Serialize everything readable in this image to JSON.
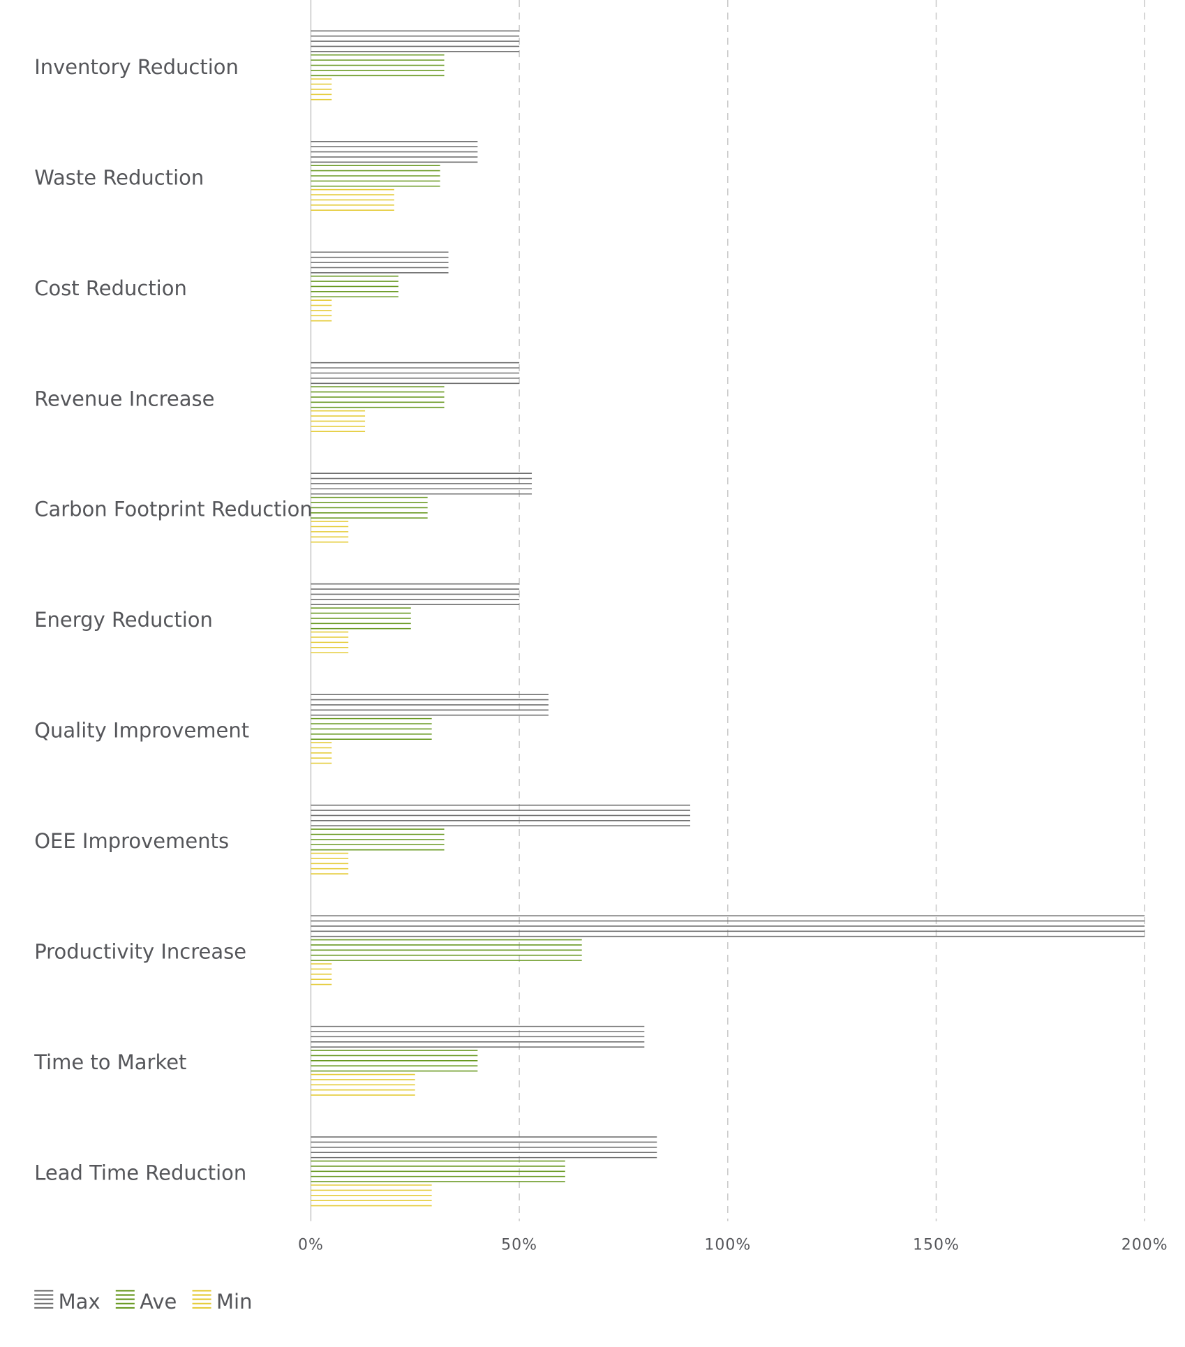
{
  "chart_data": {
    "type": "bar",
    "orientation": "horizontal",
    "categories": [
      "Inventory Reduction",
      "Waste Reduction",
      "Cost Reduction",
      "Revenue Increase",
      "Carbon Footprint Reduction",
      "Energy Reduction",
      "Quality Improvement",
      "OEE Improvements",
      "Productivity Increase",
      "Time to Market",
      "Lead Time Reduction"
    ],
    "series": [
      {
        "name": "Max",
        "color": "#707070",
        "values": [
          50,
          40,
          33,
          50,
          53,
          50,
          57,
          91,
          200,
          80,
          83
        ]
      },
      {
        "name": "Ave",
        "color": "#6a9a23",
        "values": [
          32,
          31,
          21,
          32,
          28,
          24,
          29,
          32,
          65,
          40,
          61
        ]
      },
      {
        "name": "Min",
        "color": "#e5cc3a",
        "values": [
          5,
          20,
          5,
          13,
          9,
          9,
          5,
          9,
          5,
          25,
          29
        ]
      }
    ],
    "x_ticks": [
      "0%",
      "50%",
      "100%",
      "150%",
      "200%"
    ],
    "xlim": [
      0,
      200
    ],
    "unit": "%",
    "grid": "vertical-dashed",
    "legend_position": "bottom-left",
    "bar_style": "horizontal-hatched-lines"
  }
}
